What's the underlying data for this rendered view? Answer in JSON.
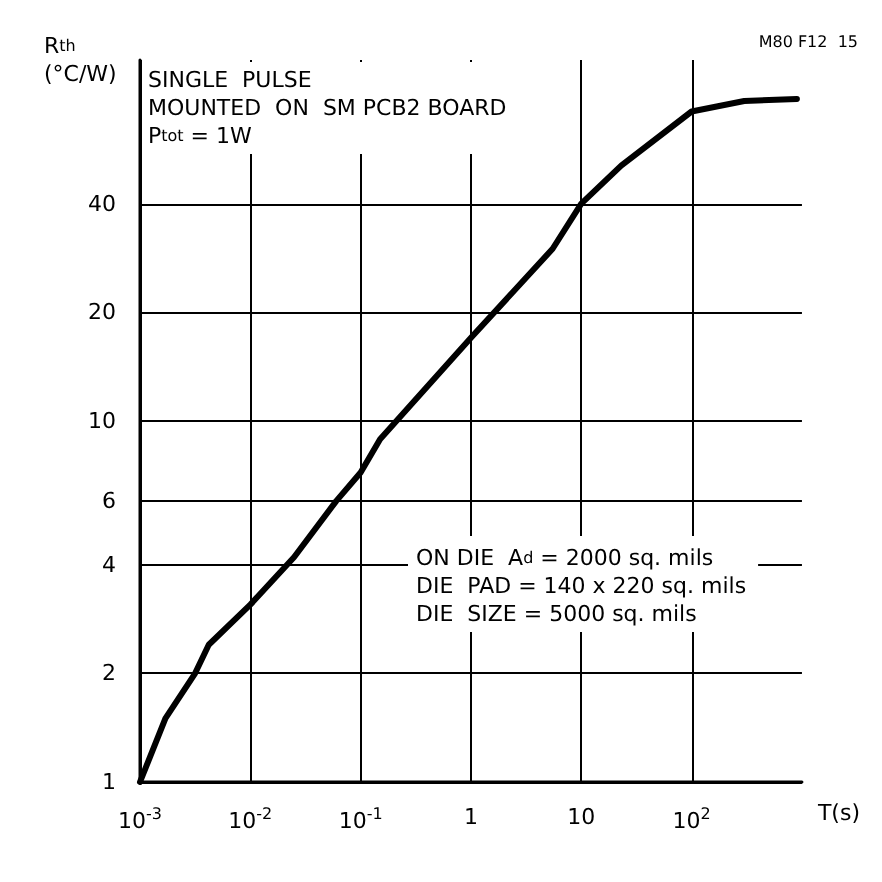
{
  "chart_data": {
    "type": "line",
    "xlabel": "T(s)",
    "ylabel": "R$_{th}$\n(°C/W)",
    "annotations": [
      "SINGLE  PULSE",
      "MOUNTED  ON  SM PCB2 BOARD",
      "P$_{tot}$ = 1W",
      "ON DIE  A$_{d}$ = 2000 sq. mils",
      "DIE  PAD = 140 x 220 sq. mils",
      "DIE  SIZE = 5000 sq. mils",
      "M80 F12  15"
    ],
    "log": "xy",
    "grid": true,
    "marker": "none",
    "line_style": "solid",
    "xlim": [
      0.001,
      1000
    ],
    "ylim": [
      1,
      100
    ],
    "xticks": [
      {
        "value": 0.001,
        "label": "10$^{-3}$"
      },
      {
        "value": 0.01,
        "label": "10$^{-2}$"
      },
      {
        "value": 0.1,
        "label": "10$^{-1}$"
      },
      1,
      10,
      {
        "value": 100,
        "label": "10$^{2}$"
      }
    ],
    "yticks": [
      1,
      2,
      4,
      6,
      10,
      20,
      40
    ],
    "series": [
      {
        "color": "#000000",
        "x": [
          0.001,
          0.0017,
          0.00316,
          0.0042,
          0.01,
          0.025,
          0.06,
          0.1,
          0.15,
          1,
          5.5,
          10,
          23,
          100,
          300,
          900
        ],
        "values": [
          1,
          1.5,
          2,
          2.4,
          3.1,
          4.2,
          6,
          7.2,
          8.9,
          17,
          30,
          40,
          51,
          72,
          77,
          78
        ]
      }
    ]
  }
}
